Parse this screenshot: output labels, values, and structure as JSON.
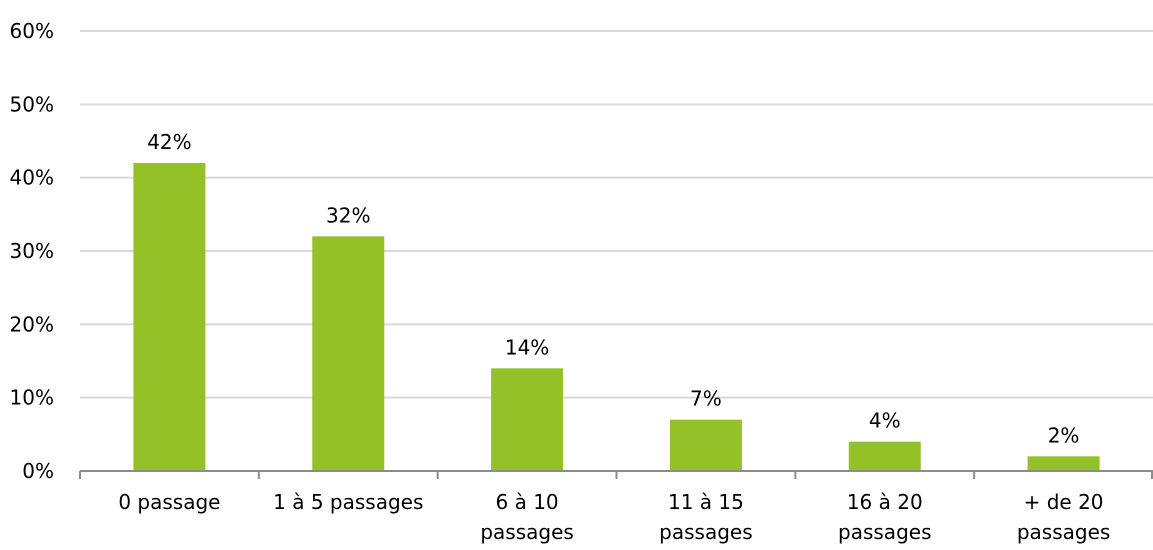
{
  "chart_data": {
    "type": "bar",
    "title": "",
    "xlabel": "",
    "ylabel": "",
    "categories": [
      [
        "0 passage"
      ],
      [
        "1 à 5 passages"
      ],
      [
        "6 à 10",
        "passages"
      ],
      [
        "11 à 15",
        "passages"
      ],
      [
        "16 à 20",
        "passages"
      ],
      [
        "+ de 20",
        "passages"
      ]
    ],
    "values": [
      42,
      32,
      14,
      7,
      4,
      2
    ],
    "data_labels": [
      "42%",
      "32%",
      "14%",
      "7%",
      "4%",
      "2%"
    ],
    "ylim": [
      0,
      60
    ],
    "yticks": [
      0,
      10,
      20,
      30,
      40,
      50,
      60
    ],
    "ytick_labels": [
      "0%",
      "10%",
      "20%",
      "30%",
      "40%",
      "50%",
      "60%"
    ],
    "grid": true,
    "legend": "none",
    "colors": {
      "bar": "#93c127",
      "grid": "#d9d9d9",
      "axis": "#8c8c8c",
      "text": "#000000"
    }
  }
}
